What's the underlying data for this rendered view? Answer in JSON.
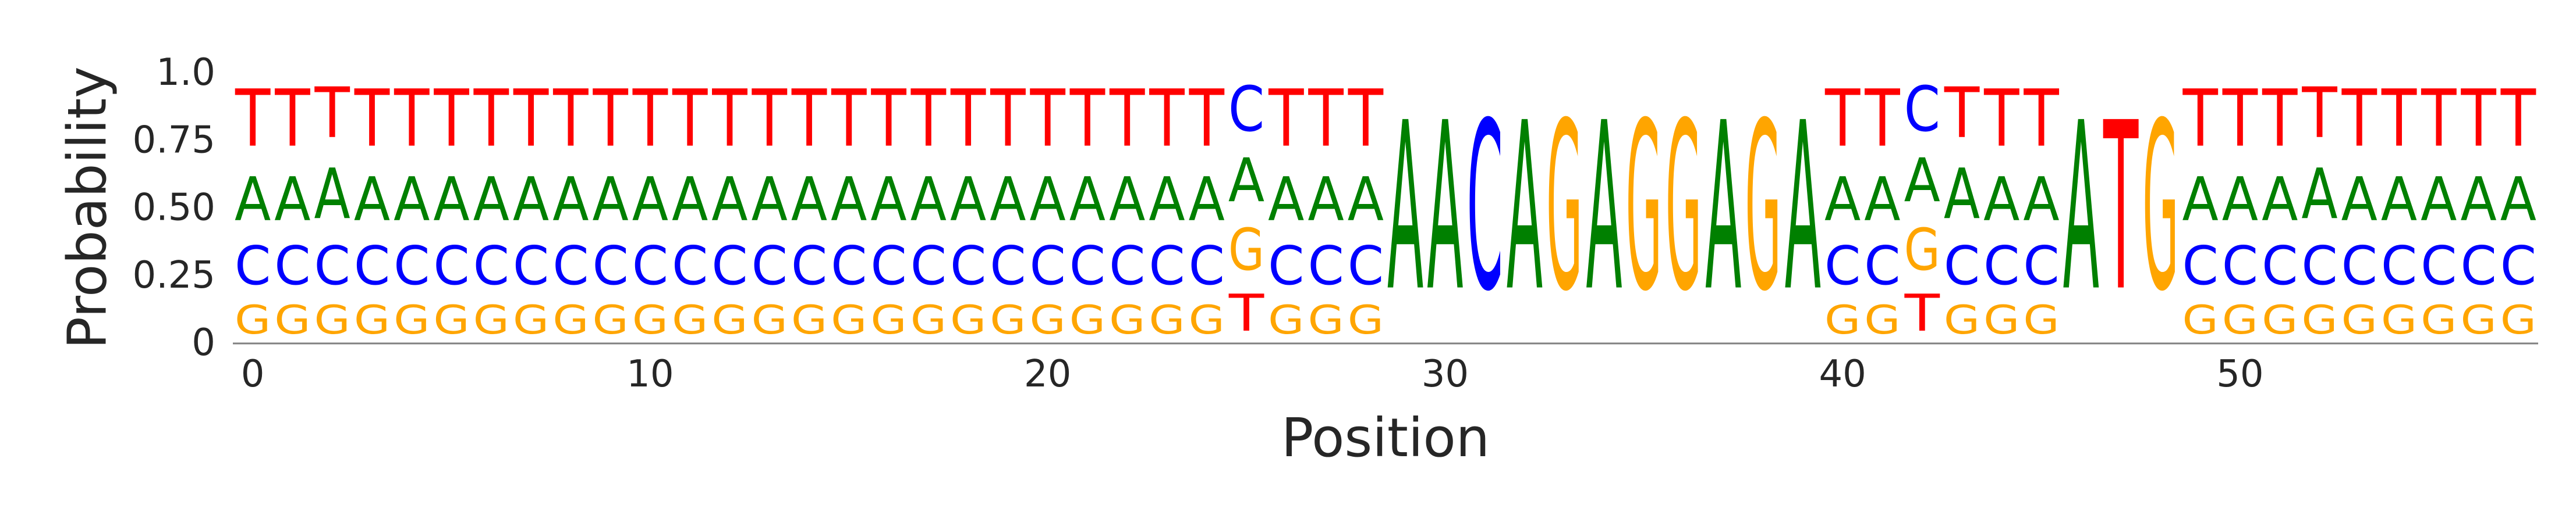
{
  "chart_data": {
    "type": "sequence-logo",
    "xlabel": "Position",
    "ylabel": "Probability",
    "ylim": [
      0,
      1.0
    ],
    "xlim": [
      -0.5,
      57.5
    ],
    "y_ticks": [
      {
        "value": 0,
        "label": "0"
      },
      {
        "value": 0.25,
        "label": "0.25"
      },
      {
        "value": 0.5,
        "label": "0.50"
      },
      {
        "value": 0.75,
        "label": "0.75"
      },
      {
        "value": 1.0,
        "label": "1.0"
      }
    ],
    "x_ticks": [
      {
        "value": 0,
        "label": "0"
      },
      {
        "value": 10,
        "label": "10"
      },
      {
        "value": 20,
        "label": "20"
      },
      {
        "value": 30,
        "label": "30"
      },
      {
        "value": 40,
        "label": "40"
      },
      {
        "value": 50,
        "label": "50"
      }
    ],
    "grid": false,
    "colors": {
      "A": "#008000",
      "C": "#0000ff",
      "G": "#ffa500",
      "T": "#ff0000"
    },
    "letters": [
      "G",
      "C",
      "A",
      "T"
    ],
    "positions": [
      {
        "G": 0.17,
        "C": 0.23,
        "A": 0.26,
        "T": 0.34
      },
      {
        "G": 0.17,
        "C": 0.23,
        "A": 0.26,
        "T": 0.34
      },
      {
        "G": 0.17,
        "C": 0.23,
        "A": 0.3,
        "T": 0.3
      },
      {
        "G": 0.17,
        "C": 0.23,
        "A": 0.26,
        "T": 0.34
      },
      {
        "G": 0.17,
        "C": 0.23,
        "A": 0.26,
        "T": 0.34
      },
      {
        "G": 0.17,
        "C": 0.23,
        "A": 0.26,
        "T": 0.34
      },
      {
        "G": 0.17,
        "C": 0.23,
        "A": 0.26,
        "T": 0.34
      },
      {
        "G": 0.17,
        "C": 0.23,
        "A": 0.26,
        "T": 0.34
      },
      {
        "G": 0.17,
        "C": 0.23,
        "A": 0.26,
        "T": 0.34
      },
      {
        "G": 0.17,
        "C": 0.23,
        "A": 0.26,
        "T": 0.34
      },
      {
        "G": 0.17,
        "C": 0.23,
        "A": 0.26,
        "T": 0.34
      },
      {
        "G": 0.17,
        "C": 0.23,
        "A": 0.26,
        "T": 0.34
      },
      {
        "G": 0.17,
        "C": 0.23,
        "A": 0.26,
        "T": 0.34
      },
      {
        "G": 0.17,
        "C": 0.23,
        "A": 0.26,
        "T": 0.34
      },
      {
        "G": 0.17,
        "C": 0.23,
        "A": 0.26,
        "T": 0.34
      },
      {
        "G": 0.17,
        "C": 0.23,
        "A": 0.26,
        "T": 0.34
      },
      {
        "G": 0.17,
        "C": 0.23,
        "A": 0.26,
        "T": 0.34
      },
      {
        "G": 0.17,
        "C": 0.23,
        "A": 0.26,
        "T": 0.34
      },
      {
        "G": 0.17,
        "C": 0.23,
        "A": 0.26,
        "T": 0.34
      },
      {
        "G": 0.17,
        "C": 0.23,
        "A": 0.26,
        "T": 0.34
      },
      {
        "G": 0.17,
        "C": 0.23,
        "A": 0.26,
        "T": 0.34
      },
      {
        "G": 0.17,
        "C": 0.23,
        "A": 0.26,
        "T": 0.34
      },
      {
        "G": 0.17,
        "C": 0.23,
        "A": 0.26,
        "T": 0.34
      },
      {
        "G": 0.17,
        "C": 0.23,
        "A": 0.26,
        "T": 0.34
      },
      {
        "G": 0.17,
        "C": 0.23,
        "A": 0.26,
        "T": 0.34
      },
      {
        "G": 0.25,
        "C": 0.27,
        "A": 0.26,
        "T": 0.22
      },
      {
        "G": 0.17,
        "C": 0.23,
        "A": 0.26,
        "T": 0.34
      },
      {
        "G": 0.17,
        "C": 0.23,
        "A": 0.26,
        "T": 0.34
      },
      {
        "G": 0.17,
        "C": 0.23,
        "A": 0.26,
        "T": 0.34
      },
      {
        "G": 0.0,
        "C": 0.0,
        "A": 1.0,
        "T": 0.0
      },
      {
        "G": 0.0,
        "C": 0.0,
        "A": 1.0,
        "T": 0.0
      },
      {
        "G": 0.0,
        "C": 1.0,
        "A": 0.0,
        "T": 0.0
      },
      {
        "G": 0.0,
        "C": 0.0,
        "A": 1.0,
        "T": 0.0
      },
      {
        "G": 1.0,
        "C": 0.0,
        "A": 0.0,
        "T": 0.0
      },
      {
        "G": 0.0,
        "C": 0.0,
        "A": 1.0,
        "T": 0.0
      },
      {
        "G": 1.0,
        "C": 0.0,
        "A": 0.0,
        "T": 0.0
      },
      {
        "G": 1.0,
        "C": 0.0,
        "A": 0.0,
        "T": 0.0
      },
      {
        "G": 0.0,
        "C": 0.0,
        "A": 1.0,
        "T": 0.0
      },
      {
        "G": 1.0,
        "C": 0.0,
        "A": 0.0,
        "T": 0.0
      },
      {
        "G": 0.0,
        "C": 0.0,
        "A": 1.0,
        "T": 0.0
      },
      {
        "G": 0.17,
        "C": 0.23,
        "A": 0.26,
        "T": 0.34
      },
      {
        "G": 0.17,
        "C": 0.23,
        "A": 0.26,
        "T": 0.34
      },
      {
        "G": 0.25,
        "C": 0.27,
        "A": 0.26,
        "T": 0.22
      },
      {
        "G": 0.17,
        "C": 0.23,
        "A": 0.3,
        "T": 0.3
      },
      {
        "G": 0.17,
        "C": 0.23,
        "A": 0.26,
        "T": 0.34
      },
      {
        "G": 0.17,
        "C": 0.23,
        "A": 0.26,
        "T": 0.34
      },
      {
        "G": 0.0,
        "C": 0.0,
        "A": 1.0,
        "T": 0.0
      },
      {
        "G": 0.0,
        "C": 0.0,
        "A": 0.0,
        "T": 1.0
      },
      {
        "G": 1.0,
        "C": 0.0,
        "A": 0.0,
        "T": 0.0
      },
      {
        "G": 0.17,
        "C": 0.23,
        "A": 0.26,
        "T": 0.34
      },
      {
        "G": 0.17,
        "C": 0.23,
        "A": 0.26,
        "T": 0.34
      },
      {
        "G": 0.17,
        "C": 0.23,
        "A": 0.26,
        "T": 0.34
      },
      {
        "G": 0.17,
        "C": 0.23,
        "A": 0.3,
        "T": 0.3
      },
      {
        "G": 0.17,
        "C": 0.23,
        "A": 0.26,
        "T": 0.34
      },
      {
        "G": 0.17,
        "C": 0.23,
        "A": 0.26,
        "T": 0.34
      },
      {
        "G": 0.17,
        "C": 0.23,
        "A": 0.26,
        "T": 0.34
      },
      {
        "G": 0.17,
        "C": 0.23,
        "A": 0.26,
        "T": 0.34
      },
      {
        "G": 0.17,
        "C": 0.23,
        "A": 0.26,
        "T": 0.34
      }
    ]
  }
}
